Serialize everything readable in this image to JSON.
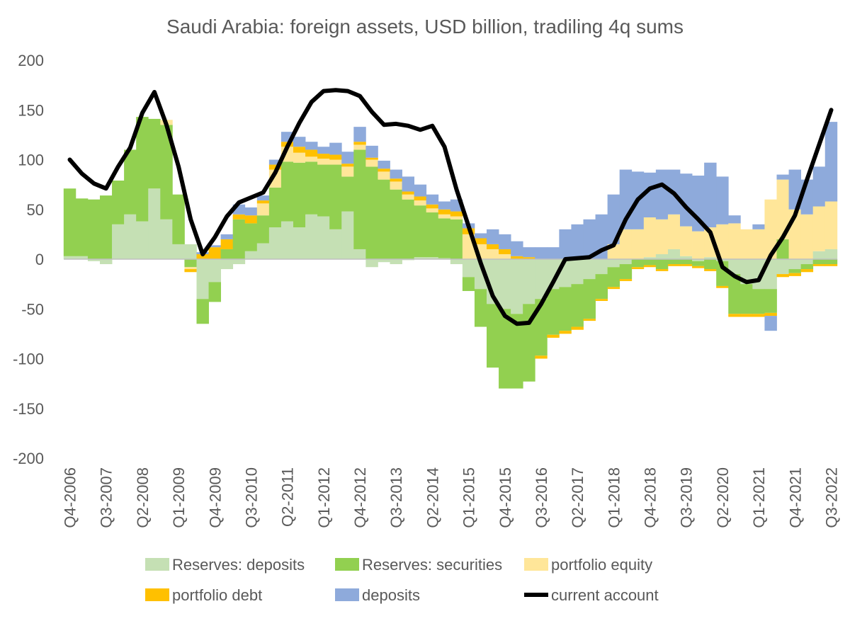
{
  "chart_data": {
    "type": "bar",
    "stacked": true,
    "title": "Saudi Arabia: foreign assets, USD billion, tradiling 4q sums",
    "xlabel": "",
    "ylabel": "",
    "ylim": [
      -200,
      200
    ],
    "yticks": [
      -200,
      -150,
      -100,
      -50,
      0,
      50,
      100,
      150,
      200
    ],
    "ytick_labels": [
      "-200",
      "-150",
      "-100",
      "-50",
      "0",
      "50",
      "100",
      "150",
      "200"
    ],
    "categories": [
      "Q4-2006",
      "Q1-2007",
      "Q2-2007",
      "Q3-2007",
      "Q4-2007",
      "Q1-2008",
      "Q2-2008",
      "Q3-2008",
      "Q4-2008",
      "Q1-2009",
      "Q2-2009",
      "Q3-2009",
      "Q4-2009",
      "Q1-2010",
      "Q2-2010",
      "Q3-2010",
      "Q4-2010",
      "Q1-2011",
      "Q2-2011",
      "Q3-2011",
      "Q4-2011",
      "Q1-2012",
      "Q2-2012",
      "Q3-2012",
      "Q4-2012",
      "Q1-2013",
      "Q2-2013",
      "Q3-2013",
      "Q4-2013",
      "Q1-2014",
      "Q2-2014",
      "Q3-2014",
      "Q4-2014",
      "Q1-2015",
      "Q2-2015",
      "Q3-2015",
      "Q4-2015",
      "Q1-2016",
      "Q2-2016",
      "Q3-2016",
      "Q4-2016",
      "Q1-2017",
      "Q2-2017",
      "Q3-2017",
      "Q4-2017",
      "Q1-2018",
      "Q2-2018",
      "Q3-2018",
      "Q4-2018",
      "Q1-2019",
      "Q2-2019",
      "Q3-2019",
      "Q4-2019",
      "Q1-2020",
      "Q2-2020",
      "Q3-2020",
      "Q4-2020",
      "Q1-2021",
      "Q2-2021",
      "Q3-2021",
      "Q4-2021",
      "Q1-2022",
      "Q2-2022",
      "Q3-2022"
    ],
    "xtick_labels": [
      "Q4-2006",
      "Q3-2007",
      "Q2-2008",
      "Q1-2009",
      "Q4-2009",
      "Q3-2010",
      "Q2-2011",
      "Q1-2012",
      "Q4-2012",
      "Q3-2013",
      "Q2-2014",
      "Q1-2015",
      "Q4-2015",
      "Q3-2016",
      "Q2-2017",
      "Q1-2018",
      "Q4-2018",
      "Q3-2019",
      "Q2-2020",
      "Q1-2021",
      "Q4-2021",
      "Q3-2022"
    ],
    "series": [
      {
        "name": "Reserves: deposits",
        "color": "#c5e0b4",
        "kind": "bar",
        "values": [
          3,
          3,
          -2,
          -5,
          35,
          45,
          38,
          71,
          40,
          15,
          15,
          -40,
          -23,
          -10,
          -5,
          8,
          16,
          32,
          38,
          32,
          45,
          43,
          30,
          48,
          10,
          -8,
          -3,
          -5,
          -1,
          2,
          2,
          1,
          -5,
          -18,
          -30,
          -45,
          -50,
          -55,
          -45,
          -40,
          -30,
          -28,
          -25,
          -20,
          -15,
          -8,
          -5,
          0,
          2,
          5,
          10,
          3,
          -2,
          2,
          -2,
          -15,
          -25,
          -30,
          -30,
          -15,
          -10,
          -5,
          8,
          10
        ]
      },
      {
        "name": "Reserves: securities",
        "color": "#92d050",
        "kind": "bar",
        "values": [
          68,
          58,
          60,
          64,
          44,
          65,
          105,
          70,
          95,
          50,
          -8,
          -25,
          -20,
          10,
          40,
          28,
          28,
          40,
          60,
          65,
          53,
          52,
          65,
          35,
          100,
          93,
          80,
          70,
          60,
          52,
          45,
          40,
          40,
          -14,
          -38,
          -64,
          -80,
          -75,
          -78,
          -57,
          -46,
          -44,
          -43,
          -40,
          -25,
          -20,
          -15,
          -8,
          -6,
          -10,
          -5,
          -5,
          -5,
          -10,
          -25,
          -40,
          -30,
          -25,
          -24,
          20,
          -4,
          -5,
          -5,
          -5
        ]
      },
      {
        "name": "portfolio equity",
        "color": "#ffe699",
        "kind": "bar",
        "values": [
          0,
          0,
          0,
          0,
          0,
          0,
          0,
          0,
          5,
          0,
          -2,
          0,
          0,
          0,
          0,
          0,
          12,
          18,
          15,
          10,
          5,
          6,
          5,
          10,
          5,
          7,
          8,
          8,
          5,
          5,
          4,
          4,
          3,
          25,
          15,
          10,
          5,
          0,
          0,
          0,
          0,
          0,
          0,
          0,
          0,
          15,
          30,
          30,
          40,
          35,
          35,
          30,
          28,
          30,
          35,
          36,
          30,
          30,
          60,
          60,
          50,
          45,
          45,
          48
        ]
      },
      {
        "name": "portfolio debt",
        "color": "#ffc000",
        "kind": "bar",
        "values": [
          0,
          0,
          0,
          0,
          0,
          0,
          0,
          0,
          0,
          0,
          -3,
          5,
          12,
          10,
          5,
          8,
          3,
          5,
          5,
          6,
          7,
          5,
          5,
          3,
          3,
          2,
          3,
          3,
          3,
          4,
          4,
          5,
          5,
          6,
          6,
          5,
          5,
          3,
          2,
          -3,
          -3,
          -3,
          -3,
          -2,
          -2,
          -2,
          -2,
          -2,
          -2,
          -2,
          -2,
          -2,
          -2,
          -2,
          -2,
          -3,
          -3,
          -3,
          -3,
          -3,
          -3,
          -3,
          -2,
          -2
        ]
      },
      {
        "name": "deposits",
        "color": "#8eaadb",
        "kind": "bar",
        "values": [
          0,
          0,
          0,
          0,
          0,
          0,
          0,
          0,
          0,
          0,
          0,
          2,
          2,
          5,
          10,
          8,
          5,
          5,
          10,
          10,
          8,
          7,
          12,
          12,
          15,
          12,
          8,
          9,
          15,
          12,
          10,
          8,
          12,
          5,
          5,
          15,
          15,
          15,
          10,
          12,
          12,
          30,
          35,
          40,
          45,
          50,
          60,
          58,
          45,
          50,
          45,
          53,
          56,
          65,
          48,
          8,
          0,
          5,
          -15,
          5,
          40,
          35,
          40,
          80
        ]
      },
      {
        "name": "current account",
        "color": "#000000",
        "kind": "line",
        "values": [
          100,
          86,
          76,
          71,
          93,
          112,
          147,
          168,
          135,
          93,
          40,
          5,
          22,
          43,
          57,
          62,
          67,
          87,
          113,
          137,
          158,
          169,
          170,
          169,
          164,
          148,
          135,
          136,
          134,
          130,
          134,
          113,
          70,
          33,
          -4,
          -37,
          -57,
          -65,
          -64,
          -45,
          -23,
          0,
          1,
          2,
          9,
          14,
          40,
          60,
          71,
          75,
          66,
          52,
          40,
          27,
          -8,
          -17,
          -23,
          -21,
          4,
          22,
          44,
          80,
          115,
          150
        ]
      }
    ],
    "legend": [
      {
        "label": "Reserves: deposits",
        "color": "#c5e0b4",
        "kind": "bar"
      },
      {
        "label": "Reserves: securities",
        "color": "#92d050",
        "kind": "bar"
      },
      {
        "label": "portfolio equity",
        "color": "#ffe699",
        "kind": "bar"
      },
      {
        "label": "portfolio debt",
        "color": "#ffc000",
        "kind": "bar"
      },
      {
        "label": "deposits",
        "color": "#8eaadb",
        "kind": "bar"
      },
      {
        "label": "current account",
        "color": "#000000",
        "kind": "line"
      }
    ],
    "legend_position": "bottom",
    "grid": false
  }
}
